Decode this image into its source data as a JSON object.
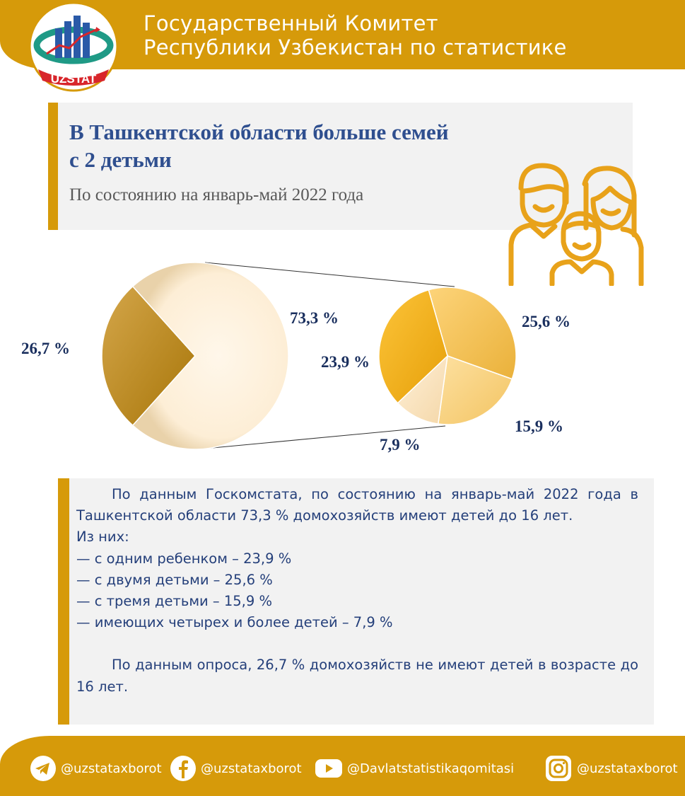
{
  "header": {
    "line1": "Государственный Комитет",
    "line2": "Республики Узбекистан по статистике",
    "logo_text": "UZSTAT"
  },
  "title": {
    "line1": "В Ташкентской области больше семей",
    "line2": "с 2 детьми",
    "subtitle": "По состоянию на январь-май 2022 года"
  },
  "colors": {
    "accent": "#d69a0a",
    "title_blue": "#2f4f8f",
    "label_navy": "#1a2f5e",
    "text_blue": "#243f7a"
  },
  "chart_data": {
    "type": "pie",
    "title": "",
    "main": {
      "slices": [
        {
          "name": "Без детей до 16 лет",
          "label": "26,7 %",
          "value": 26.7,
          "color": "#c4920e"
        },
        {
          "name": "С детьми до 16 лет",
          "label": "73,3 %",
          "value": 73.3,
          "color": "#fdeed6"
        }
      ]
    },
    "breakdown": {
      "slices": [
        {
          "name": "Двое детей",
          "label": "25,6 %",
          "value": 25.6,
          "color": "#fcc756"
        },
        {
          "name": "Трое детей",
          "label": "15,9 %",
          "value": 15.9,
          "color": "#fbd98a"
        },
        {
          "name": "Четверо и более",
          "label": "7,9 %",
          "value": 7.9,
          "color": "#fde8c4"
        },
        {
          "name": "Один ребенок",
          "label": "23,9 %",
          "value": 23.9,
          "color": "#fbba1c"
        }
      ]
    }
  },
  "text": {
    "paragraph1": "По данным Госкомстата, по состоянию на январь-май 2022 года в Ташкентской области 73,3 % домохозяйств имеют детей до 16 лет.",
    "line_of_them": "Из них:",
    "items": [
      "— с одним ребенком – 23,9 %",
      "— с двумя детьми – 25,6 %",
      "— с тремя детьми – 15,9 %",
      "— имеющих четырех и более детей – 7,9 %"
    ],
    "paragraph2": "По данным опроса, 26,7 % домохозяйств не имеют детей в возрасте до 16 лет."
  },
  "footer": {
    "telegram": "@uzstataxborot",
    "facebook": "@uzstataxborot",
    "youtube": "@Davlatstatistikaqomitasi",
    "instagram": "@uzstataxborot"
  }
}
